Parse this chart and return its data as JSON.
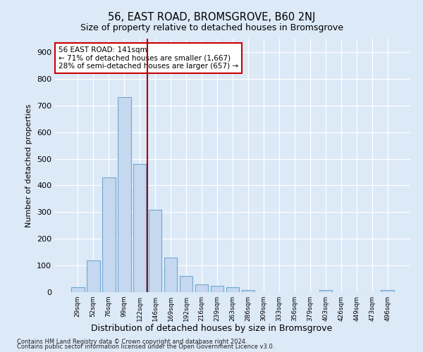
{
  "title": "56, EAST ROAD, BROMSGROVE, B60 2NJ",
  "subtitle": "Size of property relative to detached houses in Bromsgrove",
  "xlabel": "Distribution of detached houses by size in Bromsgrove",
  "ylabel": "Number of detached properties",
  "categories": [
    "29sqm",
    "52sqm",
    "76sqm",
    "99sqm",
    "122sqm",
    "146sqm",
    "169sqm",
    "192sqm",
    "216sqm",
    "239sqm",
    "263sqm",
    "286sqm",
    "309sqm",
    "333sqm",
    "356sqm",
    "379sqm",
    "403sqm",
    "426sqm",
    "449sqm",
    "473sqm",
    "496sqm"
  ],
  "values": [
    18,
    120,
    430,
    730,
    480,
    310,
    130,
    60,
    30,
    25,
    18,
    8,
    0,
    0,
    0,
    0,
    8,
    0,
    0,
    0,
    8
  ],
  "bar_color": "#c5d8ef",
  "bar_edge_color": "#6fa8d0",
  "vline_x": 4.5,
  "vline_color": "#aa0000",
  "annotation_text": "56 EAST ROAD: 141sqm\n← 71% of detached houses are smaller (1,667)\n28% of semi-detached houses are larger (657) →",
  "annotation_box_color": "#ffffff",
  "annotation_box_edge": "#cc0000",
  "bg_color": "#dce9f7",
  "plot_bg_color": "#dce9f7",
  "footer1": "Contains HM Land Registry data © Crown copyright and database right 2024.",
  "footer2": "Contains public sector information licensed under the Open Government Licence v3.0.",
  "ylim": [
    0,
    950
  ],
  "yticks": [
    0,
    100,
    200,
    300,
    400,
    500,
    600,
    700,
    800,
    900
  ]
}
